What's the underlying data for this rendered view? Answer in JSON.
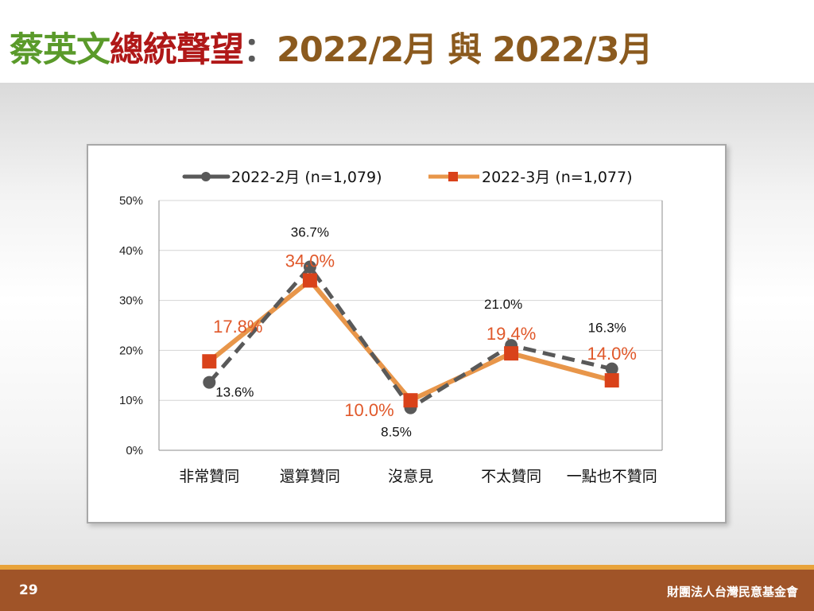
{
  "title": {
    "part1": "蔡英文",
    "part2": "總統聲望",
    "part3": "：",
    "part4": "2022/2月 與 2022/3月"
  },
  "footer": {
    "page_number": "29",
    "organization": "財團法人台灣民意基金會"
  },
  "colors": {
    "series1": "#595959",
    "series2_line": "#e8964a",
    "series2_marker": "#d9421a",
    "series2_label": "#e0582a",
    "footer_bg": "#a05428",
    "footer_line": "#e8a33a"
  },
  "chart_data": {
    "type": "line",
    "categories": [
      "非常贊同",
      "還算贊同",
      "沒意見",
      "不太贊同",
      "一點也不贊同"
    ],
    "y_ticks": [
      "0%",
      "10%",
      "20%",
      "30%",
      "40%",
      "50%"
    ],
    "ylim": [
      0,
      50
    ],
    "grid": true,
    "legend_position": "top",
    "series": [
      {
        "name": "2022-2月 (n=1,079)",
        "values": [
          13.6,
          36.7,
          8.5,
          21.0,
          16.3
        ],
        "labels": [
          "13.6%",
          "36.7%",
          "8.5%",
          "21.0%",
          "16.3%"
        ],
        "style": "dashed",
        "marker": "circle"
      },
      {
        "name": "2022-3月 (n=1,077)",
        "values": [
          17.8,
          34.0,
          10.0,
          19.4,
          14.0
        ],
        "labels": [
          "17.8%",
          "34.0%",
          "10.0%",
          "19.4%",
          "14.0%"
        ],
        "style": "solid",
        "marker": "square"
      }
    ]
  }
}
